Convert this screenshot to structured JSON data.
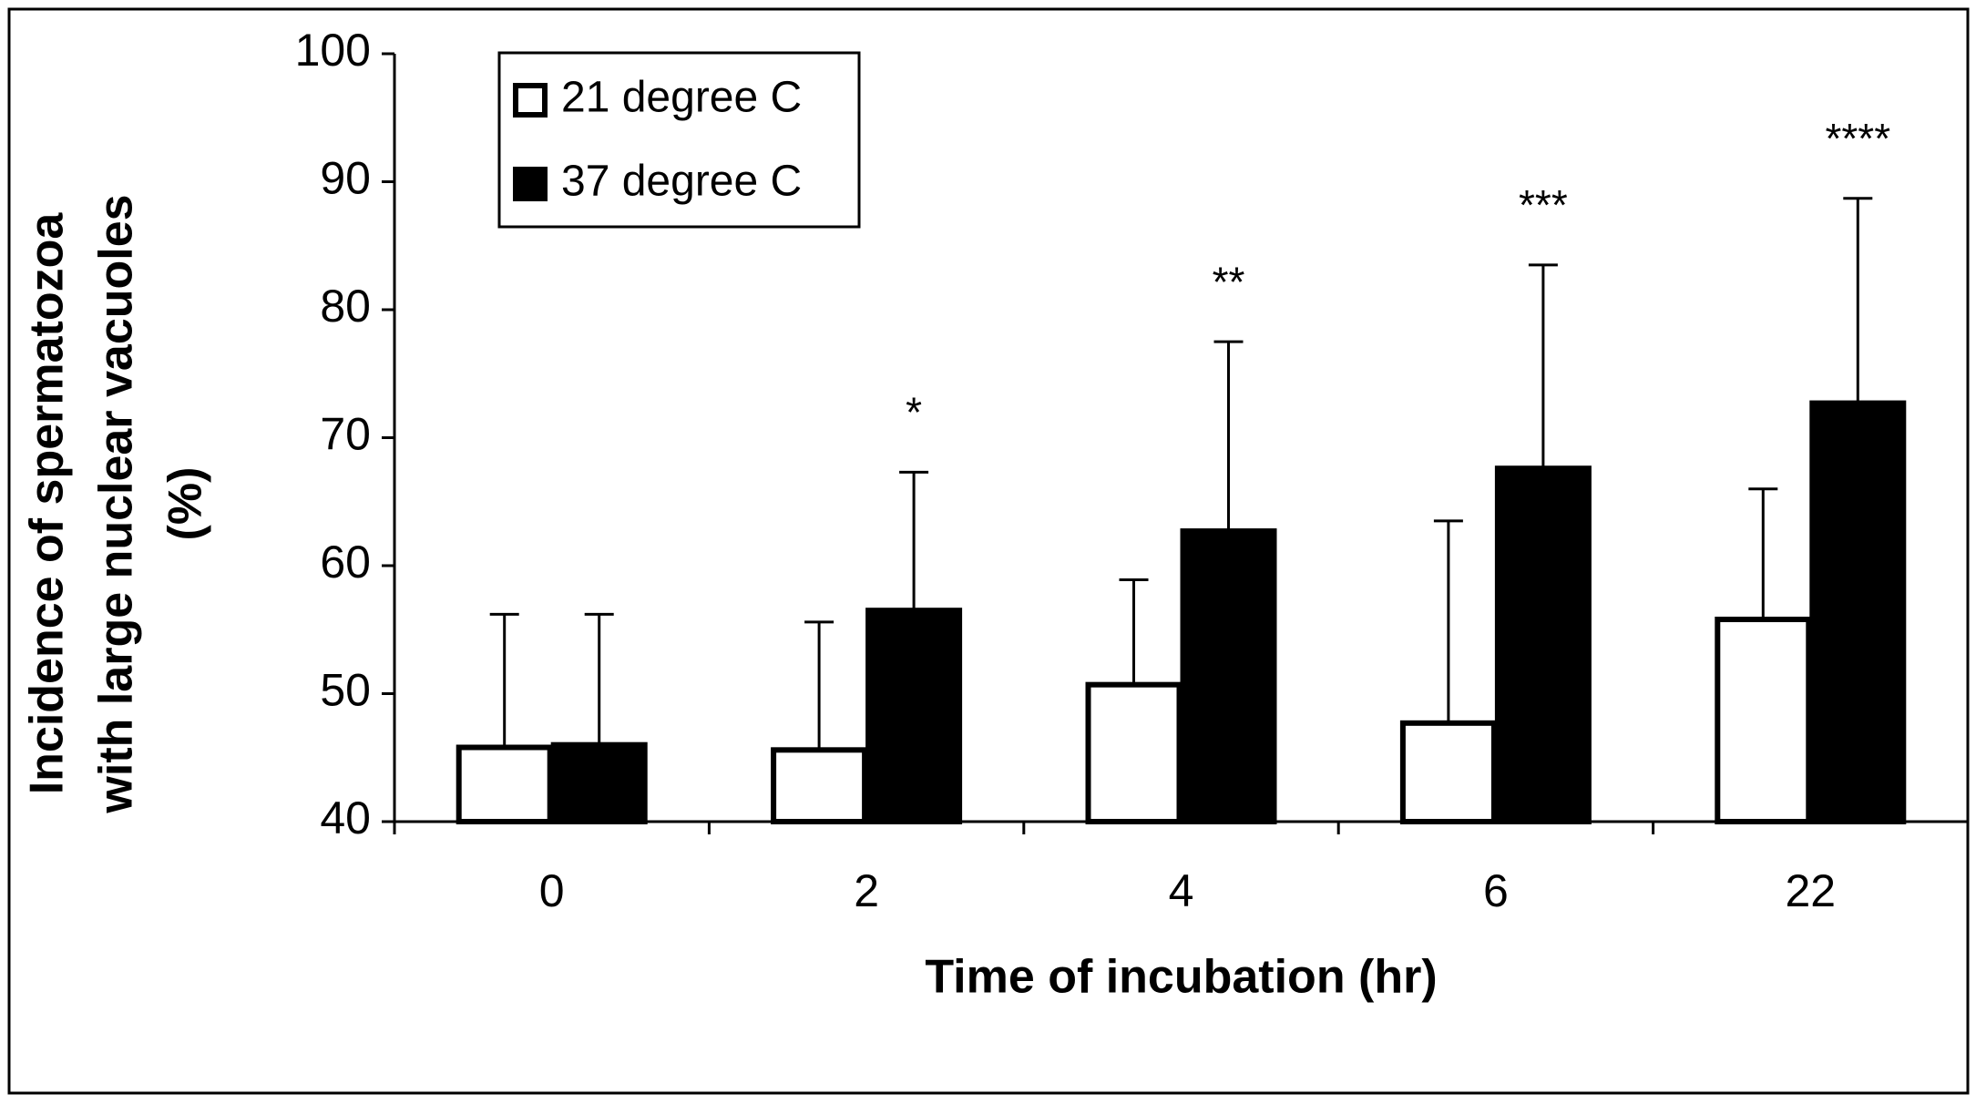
{
  "chart_data": {
    "type": "bar",
    "ylabel": [
      "Incidence of spermatozoa",
      "with large nuclear  vacuoles",
      "(%)"
    ],
    "xlabel": "Time of incubation (hr)",
    "categories": [
      "0",
      "2",
      "4",
      "6",
      "22"
    ],
    "series": [
      {
        "name": "21 degree C",
        "color": "#ffffff",
        "values": [
          45.8,
          45.6,
          50.7,
          47.7,
          55.8
        ],
        "errors": [
          10.4,
          10.0,
          8.2,
          15.8,
          10.2
        ]
      },
      {
        "name": "37 degree C",
        "color": "#000000",
        "values": [
          46.0,
          56.5,
          62.7,
          67.6,
          72.7
        ],
        "errors": [
          10.2,
          10.8,
          14.8,
          15.9,
          16.0
        ]
      }
    ],
    "significance": [
      null,
      "*",
      "**",
      "***",
      "****"
    ],
    "ylim": [
      40,
      100
    ],
    "yticks": [
      40,
      50,
      60,
      70,
      80,
      90,
      100
    ],
    "grid": false,
    "legend": "upper left"
  }
}
